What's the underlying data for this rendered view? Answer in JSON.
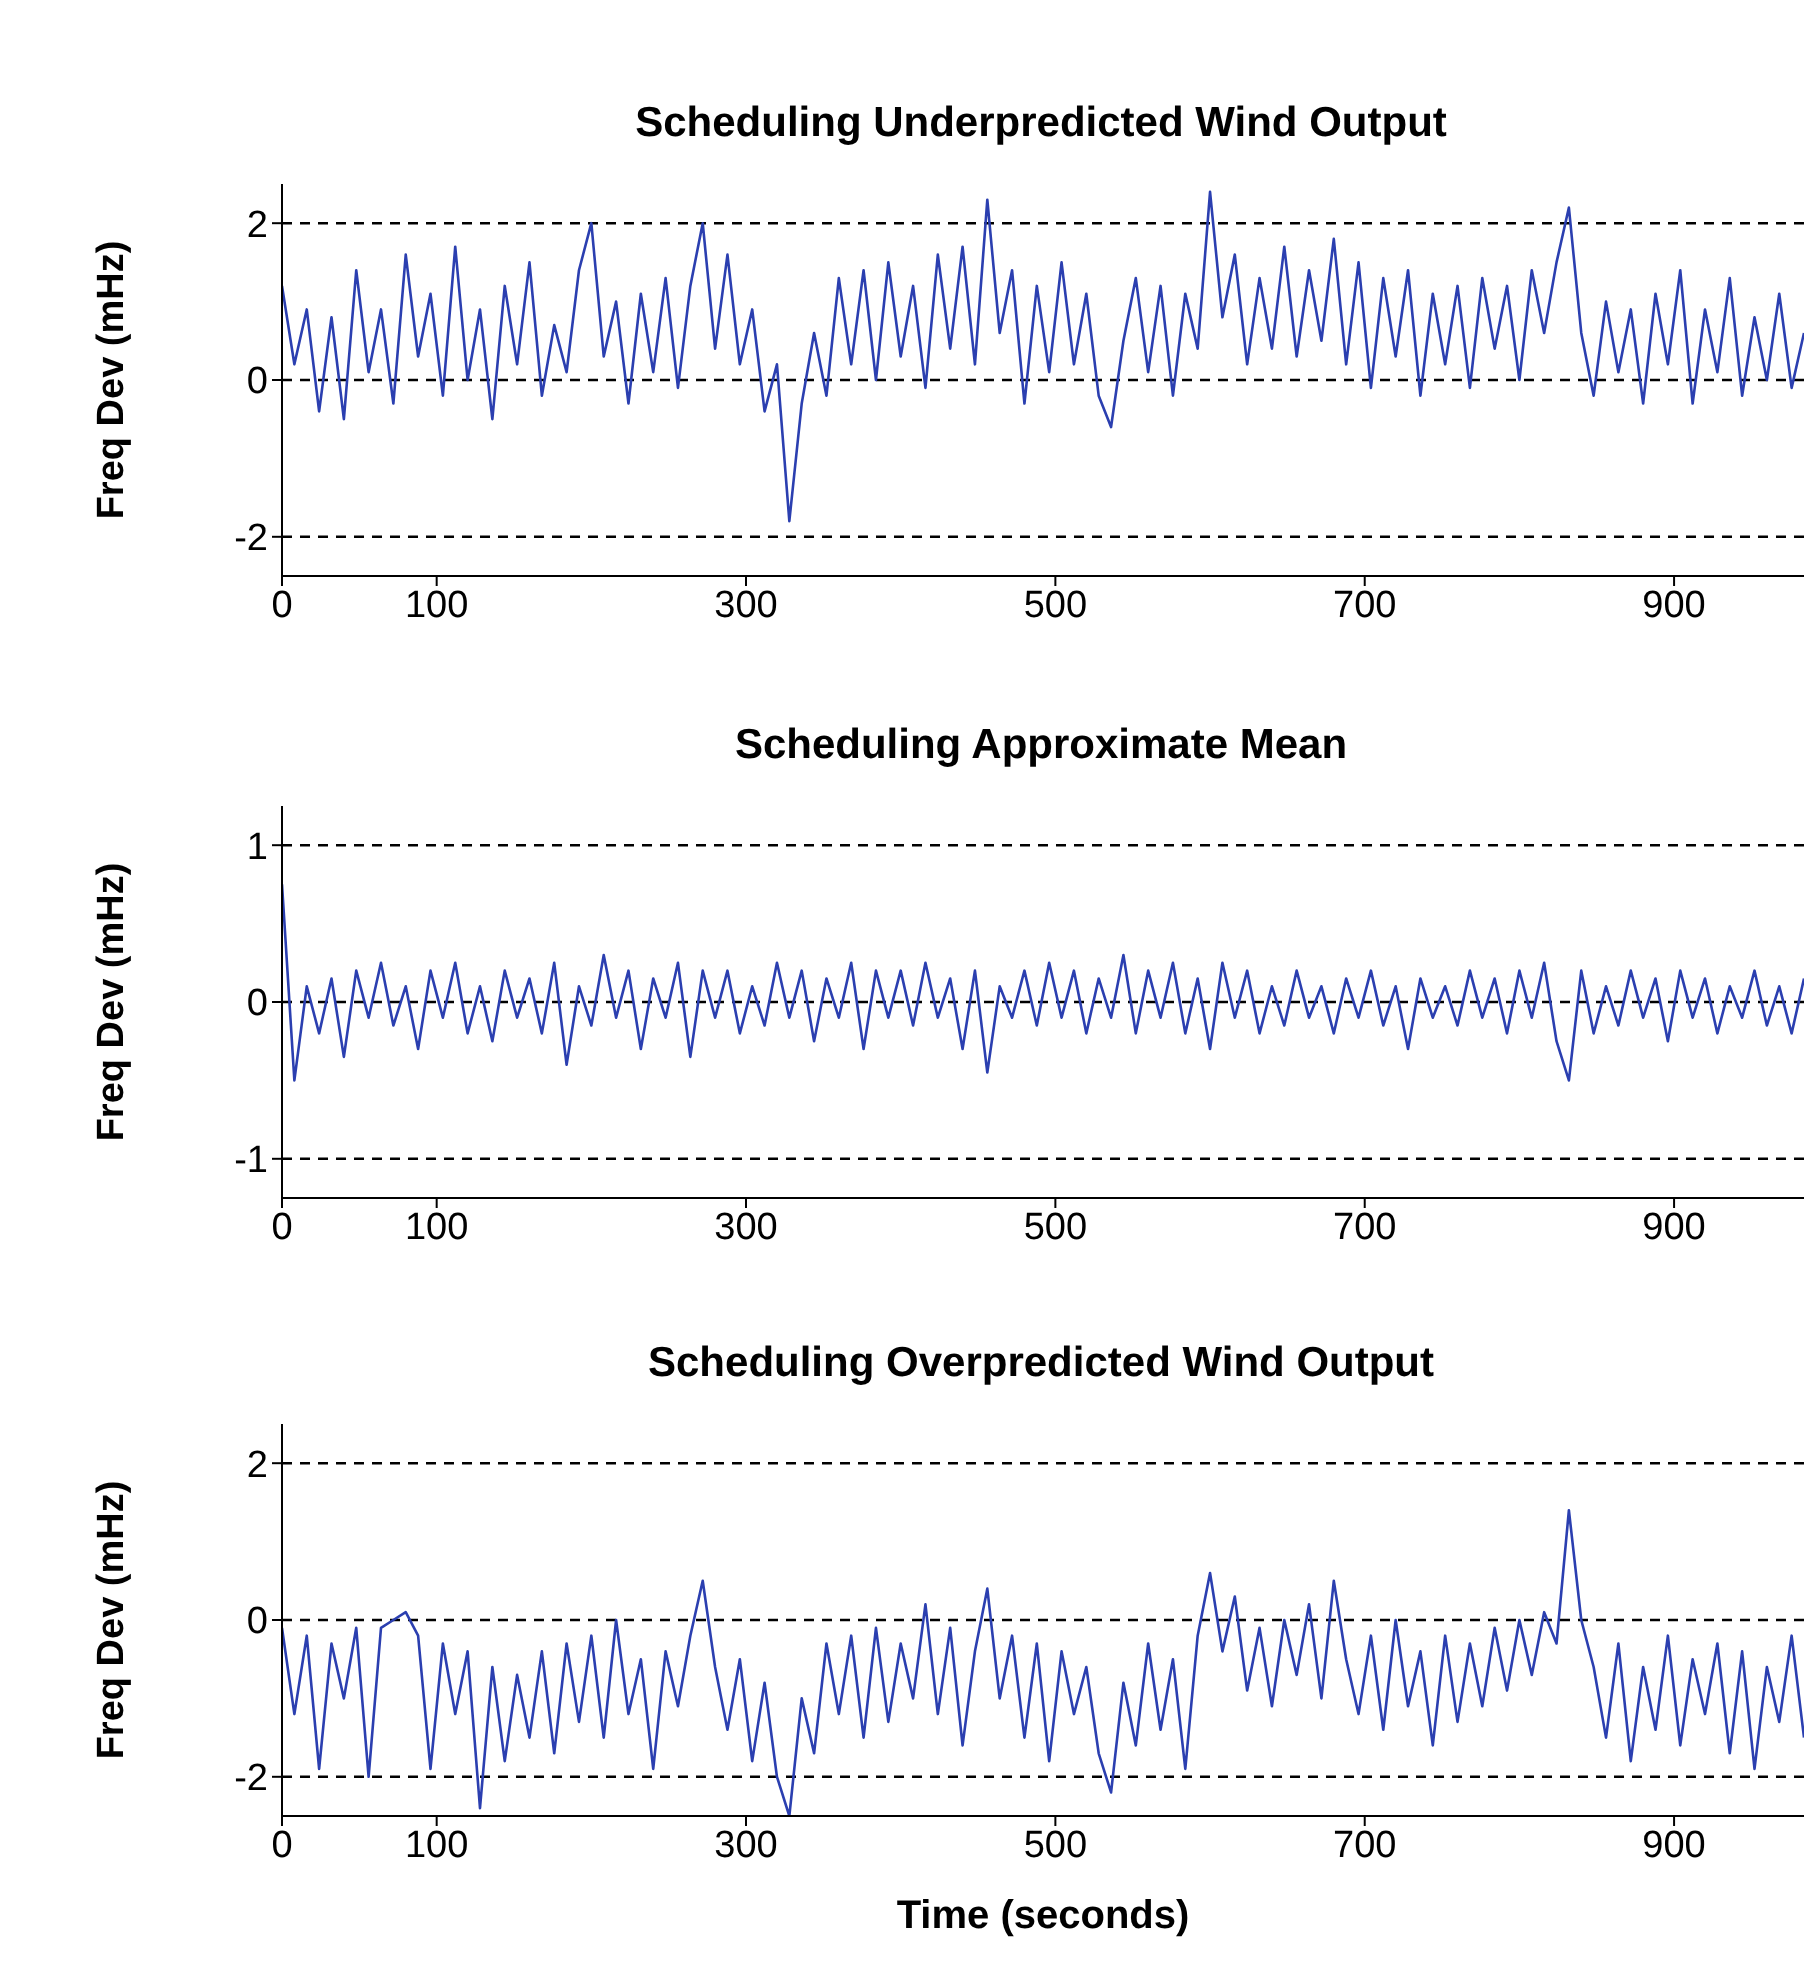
{
  "chart_data": [
    {
      "type": "line",
      "title": "Scheduling Underpredicted Wind Output",
      "ylabel": "Freq Dev (mHz)",
      "xlim": [
        0,
        984
      ],
      "xticks": [
        0,
        100,
        300,
        500,
        700,
        900
      ],
      "ylim": [
        -2.5,
        2.5
      ],
      "yticks": [
        -2,
        0,
        2
      ],
      "x": [
        0,
        8,
        16,
        24,
        32,
        40,
        48,
        56,
        64,
        72,
        80,
        88,
        96,
        104,
        112,
        120,
        128,
        136,
        144,
        152,
        160,
        168,
        176,
        184,
        192,
        200,
        208,
        216,
        224,
        232,
        240,
        248,
        256,
        264,
        272,
        280,
        288,
        296,
        304,
        312,
        320,
        328,
        336,
        344,
        352,
        360,
        368,
        376,
        384,
        392,
        400,
        408,
        416,
        424,
        432,
        440,
        448,
        456,
        464,
        472,
        480,
        488,
        496,
        504,
        512,
        520,
        528,
        536,
        544,
        552,
        560,
        568,
        576,
        584,
        592,
        600,
        608,
        616,
        624,
        632,
        640,
        648,
        656,
        664,
        672,
        680,
        688,
        696,
        704,
        712,
        720,
        728,
        736,
        744,
        752,
        760,
        768,
        776,
        784,
        792,
        800,
        808,
        816,
        824,
        832,
        840,
        848,
        856,
        864,
        872,
        880,
        888,
        896,
        904,
        912,
        920,
        928,
        936,
        944,
        952,
        960,
        968,
        976,
        984
      ],
      "series": [
        {
          "color": "#2b3fb0",
          "values": [
            1.2,
            0.2,
            0.9,
            -0.4,
            0.8,
            -0.5,
            1.4,
            0.1,
            0.9,
            -0.3,
            1.6,
            0.3,
            1.1,
            -0.2,
            1.7,
            0.0,
            0.9,
            -0.5,
            1.2,
            0.2,
            1.5,
            -0.2,
            0.7,
            0.1,
            1.4,
            2.0,
            0.3,
            1.0,
            -0.3,
            1.1,
            0.1,
            1.3,
            -0.1,
            1.2,
            2.0,
            0.4,
            1.6,
            0.2,
            0.9,
            -0.4,
            0.2,
            -1.8,
            -0.3,
            0.6,
            -0.2,
            1.3,
            0.2,
            1.4,
            0.0,
            1.5,
            0.3,
            1.2,
            -0.1,
            1.6,
            0.4,
            1.7,
            0.2,
            2.3,
            0.6,
            1.4,
            -0.3,
            1.2,
            0.1,
            1.5,
            0.2,
            1.1,
            -0.2,
            -0.6,
            0.5,
            1.3,
            0.1,
            1.2,
            -0.2,
            1.1,
            0.4,
            2.4,
            0.8,
            1.6,
            0.2,
            1.3,
            0.4,
            1.7,
            0.3,
            1.4,
            0.5,
            1.8,
            0.2,
            1.5,
            -0.1,
            1.3,
            0.3,
            1.4,
            -0.2,
            1.1,
            0.2,
            1.2,
            -0.1,
            1.3,
            0.4,
            1.2,
            0.0,
            1.4,
            0.6,
            1.5,
            2.2,
            0.6,
            -0.2,
            1.0,
            0.1,
            0.9,
            -0.3,
            1.1,
            0.2,
            1.4,
            -0.3,
            0.9,
            0.1,
            1.3,
            -0.2,
            0.8,
            0.0,
            1.1,
            -0.1,
            0.6
          ]
        }
      ],
      "ref_lines": [
        {
          "axis": "y",
          "value": 2,
          "color": "#000000",
          "line_style": "dashed"
        },
        {
          "axis": "y",
          "value": 0,
          "color": "#000000",
          "line_style": "dashed"
        },
        {
          "axis": "y",
          "value": -2,
          "color": "#000000",
          "line_style": "dashed"
        }
      ]
    },
    {
      "type": "line",
      "title": "Scheduling Approximate Mean",
      "ylabel": "Freq Dev (mHz)",
      "xlim": [
        0,
        984
      ],
      "xticks": [
        0,
        100,
        300,
        500,
        700,
        900
      ],
      "ylim": [
        -1.25,
        1.25
      ],
      "yticks": [
        -1,
        0,
        1
      ],
      "x": [
        0,
        8,
        16,
        24,
        32,
        40,
        48,
        56,
        64,
        72,
        80,
        88,
        96,
        104,
        112,
        120,
        128,
        136,
        144,
        152,
        160,
        168,
        176,
        184,
        192,
        200,
        208,
        216,
        224,
        232,
        240,
        248,
        256,
        264,
        272,
        280,
        288,
        296,
        304,
        312,
        320,
        328,
        336,
        344,
        352,
        360,
        368,
        376,
        384,
        392,
        400,
        408,
        416,
        424,
        432,
        440,
        448,
        456,
        464,
        472,
        480,
        488,
        496,
        504,
        512,
        520,
        528,
        536,
        544,
        552,
        560,
        568,
        576,
        584,
        592,
        600,
        608,
        616,
        624,
        632,
        640,
        648,
        656,
        664,
        672,
        680,
        688,
        696,
        704,
        712,
        720,
        728,
        736,
        744,
        752,
        760,
        768,
        776,
        784,
        792,
        800,
        808,
        816,
        824,
        832,
        840,
        848,
        856,
        864,
        872,
        880,
        888,
        896,
        904,
        912,
        920,
        928,
        936,
        944,
        952,
        960,
        968,
        976,
        984
      ],
      "series": [
        {
          "color": "#2b3fb0",
          "values": [
            0.75,
            -0.5,
            0.1,
            -0.2,
            0.15,
            -0.35,
            0.2,
            -0.1,
            0.25,
            -0.15,
            0.1,
            -0.3,
            0.2,
            -0.1,
            0.25,
            -0.2,
            0.1,
            -0.25,
            0.2,
            -0.1,
            0.15,
            -0.2,
            0.25,
            -0.4,
            0.1,
            -0.15,
            0.3,
            -0.1,
            0.2,
            -0.3,
            0.15,
            -0.1,
            0.25,
            -0.35,
            0.2,
            -0.1,
            0.2,
            -0.2,
            0.1,
            -0.15,
            0.25,
            -0.1,
            0.2,
            -0.25,
            0.15,
            -0.1,
            0.25,
            -0.3,
            0.2,
            -0.1,
            0.2,
            -0.15,
            0.25,
            -0.1,
            0.15,
            -0.3,
            0.2,
            -0.45,
            0.1,
            -0.1,
            0.2,
            -0.15,
            0.25,
            -0.1,
            0.2,
            -0.2,
            0.15,
            -0.1,
            0.3,
            -0.2,
            0.2,
            -0.1,
            0.25,
            -0.2,
            0.15,
            -0.3,
            0.25,
            -0.1,
            0.2,
            -0.2,
            0.1,
            -0.15,
            0.2,
            -0.1,
            0.1,
            -0.2,
            0.15,
            -0.1,
            0.2,
            -0.15,
            0.1,
            -0.3,
            0.15,
            -0.1,
            0.1,
            -0.15,
            0.2,
            -0.1,
            0.15,
            -0.2,
            0.2,
            -0.1,
            0.25,
            -0.25,
            -0.5,
            0.2,
            -0.2,
            0.1,
            -0.15,
            0.2,
            -0.1,
            0.15,
            -0.25,
            0.2,
            -0.1,
            0.15,
            -0.2,
            0.1,
            -0.1,
            0.2,
            -0.15,
            0.1,
            -0.2,
            0.15
          ]
        }
      ],
      "ref_lines": [
        {
          "axis": "y",
          "value": 1,
          "color": "#000000",
          "line_style": "dashed"
        },
        {
          "axis": "y",
          "value": 0,
          "color": "#000000",
          "line_style": "dashed"
        },
        {
          "axis": "y",
          "value": -1,
          "color": "#000000",
          "line_style": "dashed"
        }
      ]
    },
    {
      "type": "line",
      "title": "Scheduling Overpredicted Wind Output",
      "ylabel": "Freq Dev (mHz)",
      "xlabel": "Time (seconds)",
      "xlim": [
        0,
        984
      ],
      "xticks": [
        0,
        100,
        300,
        500,
        700,
        900
      ],
      "ylim": [
        -2.5,
        2.5
      ],
      "yticks": [
        -2,
        0,
        2
      ],
      "x": [
        0,
        8,
        16,
        24,
        32,
        40,
        48,
        56,
        64,
        72,
        80,
        88,
        96,
        104,
        112,
        120,
        128,
        136,
        144,
        152,
        160,
        168,
        176,
        184,
        192,
        200,
        208,
        216,
        224,
        232,
        240,
        248,
        256,
        264,
        272,
        280,
        288,
        296,
        304,
        312,
        320,
        328,
        336,
        344,
        352,
        360,
        368,
        376,
        384,
        392,
        400,
        408,
        416,
        424,
        432,
        440,
        448,
        456,
        464,
        472,
        480,
        488,
        496,
        504,
        512,
        520,
        528,
        536,
        544,
        552,
        560,
        568,
        576,
        584,
        592,
        600,
        608,
        616,
        624,
        632,
        640,
        648,
        656,
        664,
        672,
        680,
        688,
        696,
        704,
        712,
        720,
        728,
        736,
        744,
        752,
        760,
        768,
        776,
        784,
        792,
        800,
        808,
        816,
        824,
        832,
        840,
        848,
        856,
        864,
        872,
        880,
        888,
        896,
        904,
        912,
        920,
        928,
        936,
        944,
        952,
        960,
        968,
        976,
        984
      ],
      "series": [
        {
          "color": "#2b3fb0",
          "values": [
            -0.1,
            -1.2,
            -0.2,
            -1.9,
            -0.3,
            -1.0,
            -0.1,
            -2.0,
            -0.1,
            0.0,
            0.1,
            -0.2,
            -1.9,
            -0.3,
            -1.2,
            -0.4,
            -2.4,
            -0.6,
            -1.8,
            -0.7,
            -1.5,
            -0.4,
            -1.7,
            -0.3,
            -1.3,
            -0.2,
            -1.5,
            0.0,
            -1.2,
            -0.5,
            -1.9,
            -0.4,
            -1.1,
            -0.2,
            0.5,
            -0.6,
            -1.4,
            -0.5,
            -1.8,
            -0.8,
            -2.0,
            -2.5,
            -1.0,
            -1.7,
            -0.3,
            -1.2,
            -0.2,
            -1.5,
            -0.1,
            -1.3,
            -0.3,
            -1.0,
            0.2,
            -1.2,
            -0.1,
            -1.6,
            -0.4,
            0.4,
            -1.0,
            -0.2,
            -1.5,
            -0.3,
            -1.8,
            -0.4,
            -1.2,
            -0.6,
            -1.7,
            -2.2,
            -0.8,
            -1.6,
            -0.3,
            -1.4,
            -0.5,
            -1.9,
            -0.2,
            0.6,
            -0.4,
            0.3,
            -0.9,
            -0.1,
            -1.1,
            0.0,
            -0.7,
            0.2,
            -1.0,
            0.5,
            -0.5,
            -1.2,
            -0.2,
            -1.4,
            0.0,
            -1.1,
            -0.4,
            -1.6,
            -0.2,
            -1.3,
            -0.3,
            -1.1,
            -0.1,
            -0.9,
            0.0,
            -0.7,
            0.1,
            -0.3,
            1.4,
            0.0,
            -0.6,
            -1.5,
            -0.3,
            -1.8,
            -0.6,
            -1.4,
            -0.2,
            -1.6,
            -0.5,
            -1.2,
            -0.3,
            -1.7,
            -0.4,
            -1.9,
            -0.6,
            -1.3,
            -0.2,
            -1.5
          ]
        }
      ],
      "ref_lines": [
        {
          "axis": "y",
          "value": 2,
          "color": "#000000",
          "line_style": "dashed"
        },
        {
          "axis": "y",
          "value": 0,
          "color": "#000000",
          "line_style": "dashed"
        },
        {
          "axis": "y",
          "value": -2,
          "color": "#000000",
          "line_style": "dashed"
        }
      ]
    }
  ]
}
